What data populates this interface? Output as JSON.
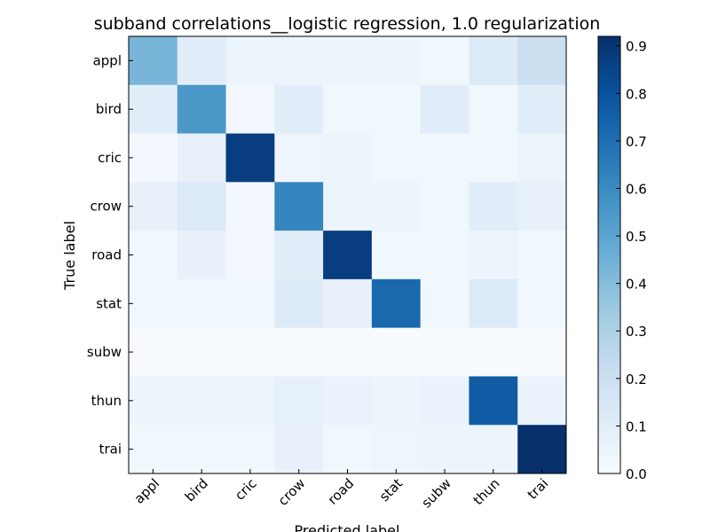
{
  "chart_data": {
    "type": "heatmap",
    "title": "subband correlations__logistic regression, 1.0 regularization",
    "xlabel": "Predicted label",
    "ylabel": "True label",
    "row_labels": [
      "appl",
      "bird",
      "cric",
      "crow",
      "road",
      "stat",
      "subw",
      "thun",
      "trai"
    ],
    "col_labels": [
      "appl",
      "bird",
      "cric",
      "crow",
      "road",
      "stat",
      "subw",
      "thun",
      "trai"
    ],
    "values": [
      [
        0.43,
        0.1,
        0.05,
        0.05,
        0.05,
        0.05,
        0.03,
        0.12,
        0.2
      ],
      [
        0.1,
        0.55,
        0.02,
        0.1,
        0.03,
        0.03,
        0.1,
        0.03,
        0.1
      ],
      [
        0.02,
        0.07,
        0.87,
        0.04,
        0.05,
        0.03,
        0.03,
        0.03,
        0.05
      ],
      [
        0.07,
        0.12,
        0.02,
        0.62,
        0.05,
        0.05,
        0.03,
        0.1,
        0.07
      ],
      [
        0.03,
        0.07,
        0.02,
        0.1,
        0.87,
        0.03,
        0.03,
        0.05,
        0.03
      ],
      [
        0.03,
        0.03,
        0.03,
        0.12,
        0.07,
        0.72,
        0.03,
        0.12,
        0.03
      ],
      [
        0.0,
        0.0,
        0.0,
        0.0,
        0.0,
        0.0,
        0.0,
        0.0,
        0.0
      ],
      [
        0.05,
        0.05,
        0.05,
        0.08,
        0.06,
        0.05,
        0.06,
        0.77,
        0.06
      ],
      [
        0.03,
        0.03,
        0.03,
        0.07,
        0.03,
        0.04,
        0.05,
        0.05,
        0.92
      ]
    ],
    "vmin": 0.0,
    "vmax": 0.92,
    "colorbar_ticks": [
      "0.0",
      "0.1",
      "0.2",
      "0.3",
      "0.4",
      "0.5",
      "0.6",
      "0.7",
      "0.8",
      "0.9"
    ],
    "colormap": "Blues",
    "colormap_stops": [
      "#f7fbff",
      "#deebf7",
      "#c6dbef",
      "#9ecae1",
      "#6baed6",
      "#4292c6",
      "#2171b5",
      "#08519c",
      "#08306b"
    ]
  }
}
